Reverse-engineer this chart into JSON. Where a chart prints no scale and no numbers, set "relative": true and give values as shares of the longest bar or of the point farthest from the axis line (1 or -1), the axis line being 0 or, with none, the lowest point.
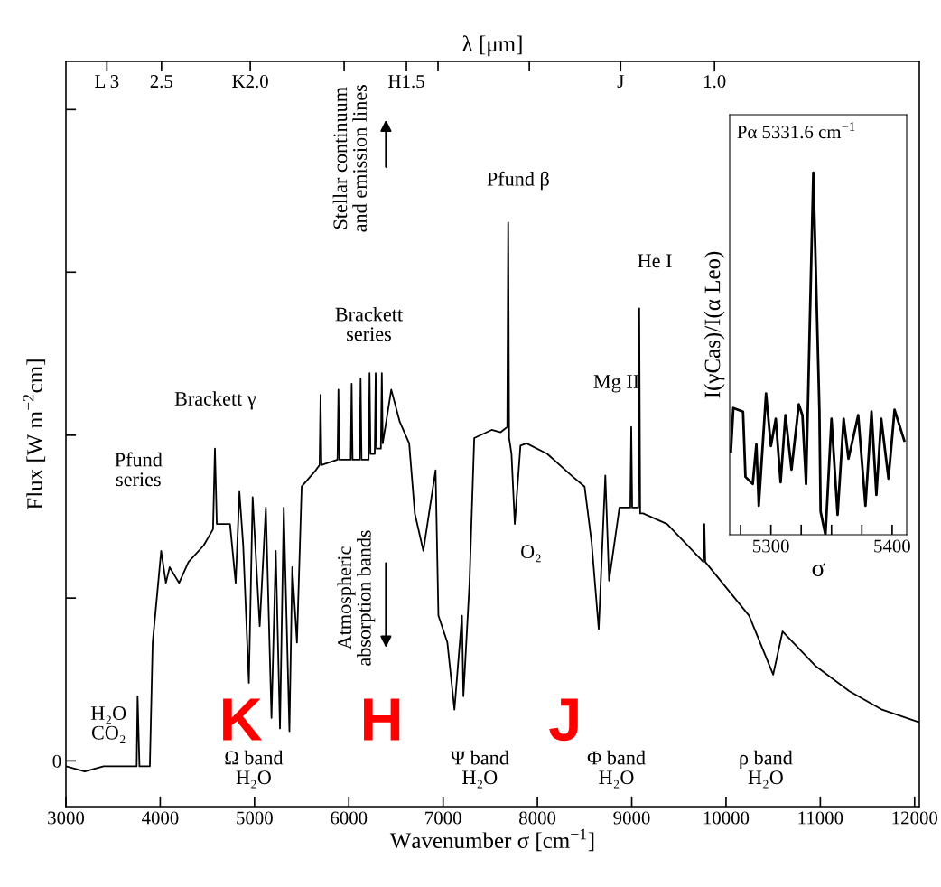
{
  "chart_data": [
    {
      "type": "line",
      "xlabel": "Wavenumber σ [cm$^{−1}$]",
      "ylabel": "Flux [W m$^{−2}$cm]",
      "x2label": "λ [μm]",
      "relative": true,
      "xlim": [
        3000,
        12050
      ],
      "xticks": [
        3000,
        4000,
        5000,
        6000,
        7000,
        8000,
        9000,
        10000,
        11000,
        12000
      ],
      "grid": false,
      "legend": false,
      "marker": "none",
      "line_style": "solid",
      "series": [
        {
          "color": "#000000",
          "x": [
            3000,
            3200,
            3400,
            3600,
            3750,
            3760,
            3780,
            3850,
            3890,
            3920,
            4010,
            4060,
            4100,
            4200,
            4300,
            4460,
            4560,
            4580,
            4600,
            4650,
            4740,
            4800,
            4840,
            4880,
            4940,
            4980,
            5055,
            5120,
            5180,
            5225,
            5270,
            5310,
            5370,
            5400,
            5450,
            5500,
            5650,
            5690,
            5700,
            5710,
            5880,
            5890,
            5900,
            6020,
            6030,
            6040,
            6115,
            6125,
            6135,
            6210,
            6220,
            6230,
            6275,
            6285,
            6295,
            6340,
            6350,
            6360,
            6450,
            6540,
            6640,
            6700,
            6790,
            6920,
            6950,
            7045,
            7120,
            7200,
            7215,
            7280,
            7300,
            7330,
            7515,
            7610,
            7680,
            7690,
            7700,
            7725,
            7760,
            7820,
            7885,
            8105,
            8360,
            8500,
            8575,
            8650,
            8720,
            8760,
            8870,
            8985,
            8995,
            9005,
            9070,
            9080,
            9090,
            9120,
            9375,
            9760,
            9770,
            9780,
            10245,
            10500,
            10600,
            10955,
            11305,
            11655,
            12040
          ],
          "values": [
            0.069,
            0.06,
            0.069,
            0.069,
            0.069,
            0.189,
            0.069,
            0.069,
            0.069,
            0.281,
            0.438,
            0.383,
            0.41,
            0.383,
            0.419,
            0.447,
            0.475,
            0.613,
            0.484,
            0.484,
            0.484,
            0.383,
            0.539,
            0.447,
            0.212,
            0.53,
            0.309,
            0.512,
            0.152,
            0.438,
            0.134,
            0.512,
            0.129,
            0.41,
            0.281,
            0.548,
            0.576,
            0.585,
            0.705,
            0.585,
            0.594,
            0.714,
            0.594,
            0.594,
            0.724,
            0.594,
            0.594,
            0.733,
            0.594,
            0.594,
            0.742,
            0.604,
            0.604,
            0.742,
            0.613,
            0.613,
            0.742,
            0.622,
            0.714,
            0.659,
            0.622,
            0.502,
            0.438,
            0.576,
            0.327,
            0.281,
            0.166,
            0.327,
            0.189,
            0.383,
            0.484,
            0.631,
            0.645,
            0.641,
            0.65,
            1.0,
            0.631,
            0.604,
            0.484,
            0.618,
            0.622,
            0.604,
            0.567,
            0.548,
            0.452,
            0.304,
            0.567,
            0.387,
            0.512,
            0.512,
            0.65,
            0.512,
            0.512,
            0.853,
            0.502,
            0.502,
            0.484,
            0.419,
            0.484,
            0.419,
            0.327,
            0.226,
            0.3,
            0.24,
            0.198,
            0.166,
            0.145
          ]
        }
      ],
      "annotations": [
        "Pfund\nseries",
        "Brackett γ",
        "Brackett\nseries",
        "Stellar continuum\nand emission lines",
        "Atmospheric\nabsorption bands",
        "Pfund β",
        "He I",
        "Mg II",
        "O₂",
        "H₂O\nCO₂",
        "Ω band\nH₂O",
        "Ψ band\nH₂O",
        "Φ band\nH₂O",
        "ρ band\nH₂O",
        "K",
        "H",
        "J",
        "L 3",
        "2.5",
        "K2.0",
        "H1.5",
        "J",
        "1.0",
        "0"
      ]
    },
    {
      "type": "line",
      "title": "Pα 5331.6 cm$^{−1}$",
      "xlabel": "σ",
      "ylabel": "I(γCas)/I(α Leo)",
      "relative": true,
      "xlim": [
        5266,
        5412
      ],
      "xticks": [
        {
          "value": 5275,
          "label": null
        },
        5300,
        {
          "value": 5325,
          "label": null
        },
        {
          "value": 5350,
          "label": null
        },
        {
          "value": 5375,
          "label": null
        },
        5400
      ],
      "grid": false,
      "legend": false,
      "marker": "none",
      "line_style": "solid",
      "series": [
        {
          "color": "#000000",
          "x": [
            5267,
            5269,
            5277,
            5279,
            5285,
            5288,
            5290,
            5296,
            5300,
            5304,
            5308,
            5312,
            5317,
            5323,
            5326,
            5329,
            5335,
            5340,
            5341,
            5345,
            5350,
            5355,
            5360,
            5364,
            5372,
            5378,
            5383,
            5387,
            5391,
            5397,
            5402,
            5410
          ],
          "values": [
            0.23,
            0.35,
            0.34,
            0.16,
            0.14,
            0.25,
            0.08,
            0.39,
            0.245,
            0.32,
            0.145,
            0.33,
            0.18,
            0.36,
            0.33,
            0.14,
            1.0,
            0.345,
            0.064,
            0.0,
            0.32,
            0.055,
            0.32,
            0.21,
            0.33,
            0.08,
            0.34,
            0.11,
            0.32,
            0.155,
            0.345,
            0.26
          ]
        }
      ]
    }
  ]
}
